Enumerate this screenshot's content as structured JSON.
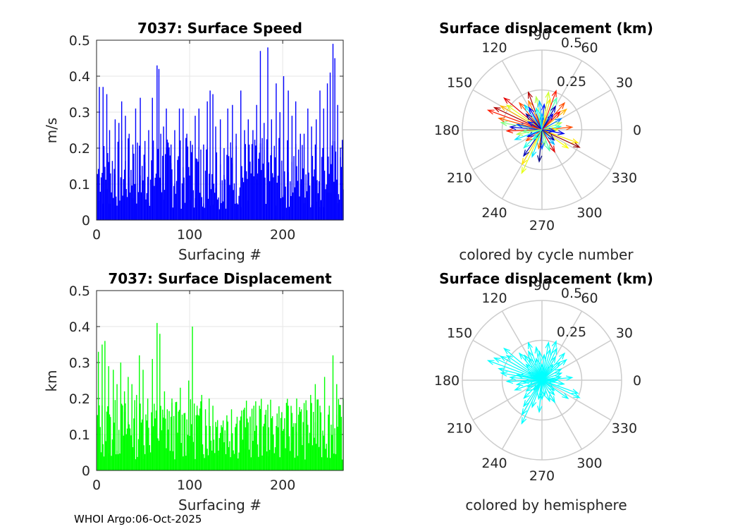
{
  "footer": "WHOI Argo:06-Oct-2025",
  "chart_data": [
    {
      "id": "speed",
      "type": "bar",
      "title": "7037: Surface Speed",
      "xlabel": "Surfacing #",
      "ylabel": "m/s",
      "xlim": [
        0,
        265
      ],
      "ylim": [
        0,
        0.5
      ],
      "xticks": [
        "0",
        "100",
        "200"
      ],
      "yticks": [
        "0",
        "0.1",
        "0.2",
        "0.3",
        "0.4",
        "0.5"
      ],
      "grid": true,
      "color": "#0000ff",
      "x": [
        3,
        7,
        11,
        14,
        20,
        24,
        27,
        31,
        35,
        39,
        42,
        47,
        52,
        56,
        60,
        65,
        67,
        69,
        72,
        75,
        80,
        84,
        89,
        93,
        97,
        101,
        106,
        110,
        115,
        119,
        122,
        125,
        128,
        133,
        137,
        141,
        146,
        150,
        155,
        159,
        163,
        168,
        172,
        176,
        180,
        184,
        188,
        193,
        197,
        201,
        206,
        210,
        214,
        219,
        223,
        227,
        231,
        236,
        240,
        244,
        248,
        251,
        254,
        256,
        259,
        262
      ],
      "values": [
        0.37,
        0.37,
        0.35,
        0.25,
        0.28,
        0.27,
        0.33,
        0.29,
        0.24,
        0.21,
        0.31,
        0.34,
        0.22,
        0.25,
        0.34,
        0.43,
        0.42,
        0.24,
        0.26,
        0.31,
        0.21,
        0.25,
        0.31,
        0.31,
        0.24,
        0.22,
        0.29,
        0.31,
        0.21,
        0.33,
        0.36,
        0.35,
        0.26,
        0.28,
        0.2,
        0.31,
        0.32,
        0.24,
        0.36,
        0.25,
        0.28,
        0.25,
        0.32,
        0.47,
        0.27,
        0.48,
        0.28,
        0.38,
        0.3,
        0.4,
        0.36,
        0.29,
        0.33,
        0.24,
        0.24,
        0.31,
        0.26,
        0.28,
        0.36,
        0.31,
        0.38,
        0.41,
        0.49,
        0.45,
        0.32,
        0.2
      ]
    },
    {
      "id": "displacement",
      "type": "bar",
      "title": "7037: Surface Displacement",
      "xlabel": "Surfacing #",
      "ylabel": "km",
      "xlim": [
        0,
        265
      ],
      "ylim": [
        0,
        0.5
      ],
      "xticks": [
        "0",
        "100",
        "200"
      ],
      "yticks": [
        "0",
        "0.1",
        "0.2",
        "0.3",
        "0.4",
        "0.5"
      ],
      "grid": true,
      "color": "#00ff00",
      "x": [
        2,
        6,
        9,
        13,
        18,
        22,
        26,
        30,
        34,
        38,
        43,
        46,
        50,
        55,
        60,
        65,
        68,
        73,
        76,
        81,
        85,
        90,
        95,
        99,
        103,
        108,
        113,
        117,
        121,
        125,
        130,
        135,
        140,
        145,
        150,
        155,
        160,
        165,
        170,
        175,
        180,
        185,
        190,
        195,
        200,
        205,
        210,
        215,
        220,
        225,
        230,
        235,
        240,
        245,
        250,
        254,
        258,
        262
      ],
      "values": [
        0.33,
        0.35,
        0.36,
        0.29,
        0.28,
        0.24,
        0.3,
        0.22,
        0.26,
        0.24,
        0.21,
        0.32,
        0.28,
        0.2,
        0.31,
        0.41,
        0.38,
        0.22,
        0.17,
        0.2,
        0.19,
        0.23,
        0.16,
        0.25,
        0.4,
        0.18,
        0.21,
        0.17,
        0.2,
        0.18,
        0.14,
        0.12,
        0.14,
        0.17,
        0.13,
        0.15,
        0.12,
        0.15,
        0.11,
        0.18,
        0.13,
        0.12,
        0.1,
        0.12,
        0.11,
        0.18,
        0.16,
        0.2,
        0.17,
        0.15,
        0.21,
        0.24,
        0.18,
        0.26,
        0.18,
        0.32,
        0.24,
        0.12
      ]
    },
    {
      "id": "polar-cycle",
      "type": "scatter",
      "subtype": "polar-compass",
      "title": "Surface displacement (km)",
      "caption": "colored by cycle number",
      "rlim": [
        0,
        0.5
      ],
      "rticks": [
        "0.25",
        "0.5"
      ],
      "angle_labels": [
        "0",
        "30",
        "60",
        "90",
        "120",
        "150",
        "180",
        "210",
        "240",
        "270",
        "300",
        "330"
      ],
      "colormap": "jet",
      "vectors": [
        {
          "angle": 160,
          "r": 0.36,
          "c": 0.85
        },
        {
          "angle": 155,
          "r": 0.33,
          "c": 0.95
        },
        {
          "angle": 150,
          "r": 0.3,
          "c": 0.7
        },
        {
          "angle": 145,
          "r": 0.27,
          "c": 0.6
        },
        {
          "angle": 140,
          "r": 0.31,
          "c": 0.9
        },
        {
          "angle": 130,
          "r": 0.22,
          "c": 0.8
        },
        {
          "angle": 125,
          "r": 0.19,
          "c": 0.35
        },
        {
          "angle": 115,
          "r": 0.2,
          "c": 0.75
        },
        {
          "angle": 110,
          "r": 0.25,
          "c": 0.95
        },
        {
          "angle": 100,
          "r": 0.21,
          "c": 0.55
        },
        {
          "angle": 95,
          "r": 0.18,
          "c": 0.3
        },
        {
          "angle": 85,
          "r": 0.16,
          "c": 0.15
        },
        {
          "angle": 75,
          "r": 0.2,
          "c": 0.65
        },
        {
          "angle": 70,
          "r": 0.26,
          "c": 0.85
        },
        {
          "angle": 65,
          "r": 0.22,
          "c": 0.45
        },
        {
          "angle": 60,
          "r": 0.17,
          "c": 0.05
        },
        {
          "angle": 50,
          "r": 0.22,
          "c": 0.8
        },
        {
          "angle": 40,
          "r": 0.2,
          "c": 0.7
        },
        {
          "angle": 30,
          "r": 0.14,
          "c": 0.25
        },
        {
          "angle": 20,
          "r": 0.13,
          "c": 0.55
        },
        {
          "angle": 10,
          "r": 0.12,
          "c": 0.4
        },
        {
          "angle": 5,
          "r": 0.19,
          "c": 0.8
        },
        {
          "angle": 0,
          "r": 0.1,
          "c": 0.6
        },
        {
          "angle": -10,
          "r": 0.14,
          "c": 0.1
        },
        {
          "angle": -20,
          "r": 0.24,
          "c": 0.65
        },
        {
          "angle": -25,
          "r": 0.26,
          "c": 0.98
        },
        {
          "angle": -35,
          "r": 0.2,
          "c": 0.62
        },
        {
          "angle": -50,
          "r": 0.12,
          "c": 0.3
        },
        {
          "angle": -60,
          "r": 0.16,
          "c": 0.9
        },
        {
          "angle": -70,
          "r": 0.14,
          "c": 0.45
        },
        {
          "angle": -80,
          "r": 0.1,
          "c": 0.5
        },
        {
          "angle": -90,
          "r": 0.12,
          "c": 0.2
        },
        {
          "angle": -100,
          "r": 0.12,
          "c": 0.75
        },
        {
          "angle": -110,
          "r": 0.18,
          "c": 0.35
        },
        {
          "angle": -115,
          "r": 0.3,
          "c": 0.6
        },
        {
          "angle": -120,
          "r": 0.25,
          "c": 0.65
        },
        {
          "angle": -125,
          "r": 0.2,
          "c": 0.05
        },
        {
          "angle": -135,
          "r": 0.16,
          "c": 0.4
        },
        {
          "angle": -145,
          "r": 0.12,
          "c": 0.8
        },
        {
          "angle": -155,
          "r": 0.1,
          "c": 0.1
        },
        {
          "angle": -160,
          "r": 0.18,
          "c": 0.35
        },
        {
          "angle": -170,
          "r": 0.16,
          "c": 0.55
        },
        {
          "angle": -178,
          "r": 0.22,
          "c": 0.85
        },
        {
          "angle": 175,
          "r": 0.2,
          "c": 0.08
        },
        {
          "angle": 170,
          "r": 0.26,
          "c": 0.5
        },
        {
          "angle": 168,
          "r": 0.16,
          "c": 0.2
        },
        {
          "angle": 135,
          "r": 0.14,
          "c": 0.02
        },
        {
          "angle": 120,
          "r": 0.16,
          "c": 0.12
        },
        {
          "angle": 105,
          "r": 0.14,
          "c": 0.38
        },
        {
          "angle": 80,
          "r": 0.24,
          "c": 0.58
        },
        {
          "angle": 55,
          "r": 0.12,
          "c": 0.1
        },
        {
          "angle": 45,
          "r": 0.16,
          "c": 0.88
        },
        {
          "angle": -5,
          "r": 0.08,
          "c": 0.15
        },
        {
          "angle": -40,
          "r": 0.1,
          "c": 0.05
        },
        {
          "angle": -95,
          "r": 0.2,
          "c": 0.0
        },
        {
          "angle": -130,
          "r": 0.08,
          "c": 0.42
        },
        {
          "angle": 150,
          "r": 0.1,
          "c": 0.15
        },
        {
          "angle": 165,
          "r": 0.28,
          "c": 0.78
        },
        {
          "angle": 185,
          "r": 0.12,
          "c": 0.48
        },
        {
          "angle": 90,
          "r": 0.1,
          "c": 0.32
        }
      ]
    },
    {
      "id": "polar-hemisphere",
      "type": "scatter",
      "subtype": "polar-compass",
      "title": "Surface displacement (km)",
      "caption": "colored by hemisphere",
      "rlim": [
        0,
        0.5
      ],
      "rticks": [
        "0.25",
        "0.5"
      ],
      "angle_labels": [
        "0",
        "30",
        "60",
        "90",
        "120",
        "150",
        "180",
        "210",
        "240",
        "270",
        "300",
        "330"
      ],
      "color": "#00ffff",
      "vectors": [
        {
          "angle": 160,
          "r": 0.36
        },
        {
          "angle": 155,
          "r": 0.33
        },
        {
          "angle": 150,
          "r": 0.3
        },
        {
          "angle": 145,
          "r": 0.27
        },
        {
          "angle": 140,
          "r": 0.31
        },
        {
          "angle": 130,
          "r": 0.22
        },
        {
          "angle": 125,
          "r": 0.19
        },
        {
          "angle": 115,
          "r": 0.2
        },
        {
          "angle": 110,
          "r": 0.25
        },
        {
          "angle": 100,
          "r": 0.21
        },
        {
          "angle": 95,
          "r": 0.18
        },
        {
          "angle": 85,
          "r": 0.16
        },
        {
          "angle": 75,
          "r": 0.2
        },
        {
          "angle": 70,
          "r": 0.26
        },
        {
          "angle": 65,
          "r": 0.22
        },
        {
          "angle": 60,
          "r": 0.17
        },
        {
          "angle": 50,
          "r": 0.22
        },
        {
          "angle": 40,
          "r": 0.2
        },
        {
          "angle": 30,
          "r": 0.14
        },
        {
          "angle": 20,
          "r": 0.13
        },
        {
          "angle": 10,
          "r": 0.12
        },
        {
          "angle": 5,
          "r": 0.19
        },
        {
          "angle": 0,
          "r": 0.1
        },
        {
          "angle": -10,
          "r": 0.14
        },
        {
          "angle": -20,
          "r": 0.24
        },
        {
          "angle": -25,
          "r": 0.26
        },
        {
          "angle": -35,
          "r": 0.2
        },
        {
          "angle": -50,
          "r": 0.12
        },
        {
          "angle": -60,
          "r": 0.16
        },
        {
          "angle": -70,
          "r": 0.14
        },
        {
          "angle": -80,
          "r": 0.1
        },
        {
          "angle": -90,
          "r": 0.12
        },
        {
          "angle": -100,
          "r": 0.12
        },
        {
          "angle": -110,
          "r": 0.18
        },
        {
          "angle": -115,
          "r": 0.3
        },
        {
          "angle": -120,
          "r": 0.25
        },
        {
          "angle": -125,
          "r": 0.2
        },
        {
          "angle": -135,
          "r": 0.16
        },
        {
          "angle": -145,
          "r": 0.12
        },
        {
          "angle": -155,
          "r": 0.1
        },
        {
          "angle": -160,
          "r": 0.18
        },
        {
          "angle": -170,
          "r": 0.16
        },
        {
          "angle": -178,
          "r": 0.22
        },
        {
          "angle": 175,
          "r": 0.2
        },
        {
          "angle": 170,
          "r": 0.26
        },
        {
          "angle": 168,
          "r": 0.16
        },
        {
          "angle": 135,
          "r": 0.14
        },
        {
          "angle": 120,
          "r": 0.16
        },
        {
          "angle": 105,
          "r": 0.14
        },
        {
          "angle": 80,
          "r": 0.24
        },
        {
          "angle": 55,
          "r": 0.12
        },
        {
          "angle": 45,
          "r": 0.16
        },
        {
          "angle": -5,
          "r": 0.08
        },
        {
          "angle": -40,
          "r": 0.1
        },
        {
          "angle": -95,
          "r": 0.2
        },
        {
          "angle": -130,
          "r": 0.08
        },
        {
          "angle": 150,
          "r": 0.1
        },
        {
          "angle": 165,
          "r": 0.28
        },
        {
          "angle": 185,
          "r": 0.12
        },
        {
          "angle": 90,
          "r": 0.1
        }
      ]
    }
  ]
}
